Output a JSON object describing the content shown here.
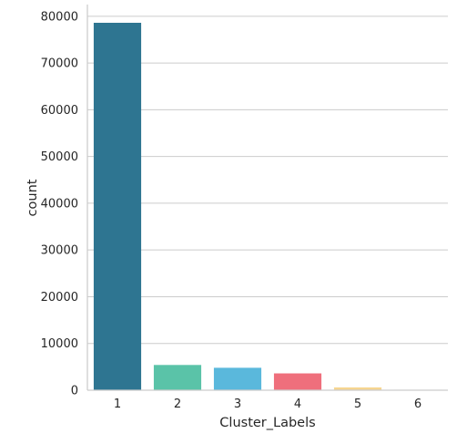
{
  "chart_data": {
    "type": "bar",
    "title": "",
    "xlabel": "Cluster_Labels",
    "ylabel": "count",
    "categories": [
      "1",
      "2",
      "3",
      "4",
      "5",
      "6"
    ],
    "values": [
      78600,
      5400,
      4800,
      3600,
      600,
      100
    ],
    "colors": [
      "#2e7591",
      "#5ac3a8",
      "#5ab8dc",
      "#ef6f7c",
      "#f6d590",
      "#d9d9d9"
    ],
    "yticks": [
      0,
      10000,
      20000,
      30000,
      40000,
      50000,
      60000,
      70000,
      80000
    ],
    "ytick_labels": [
      "0",
      "10000",
      "20000",
      "30000",
      "40000",
      "50000",
      "60000",
      "70000",
      "80000"
    ],
    "ylim": [
      0,
      82500
    ],
    "grid": "horizontal",
    "legend": "none"
  }
}
